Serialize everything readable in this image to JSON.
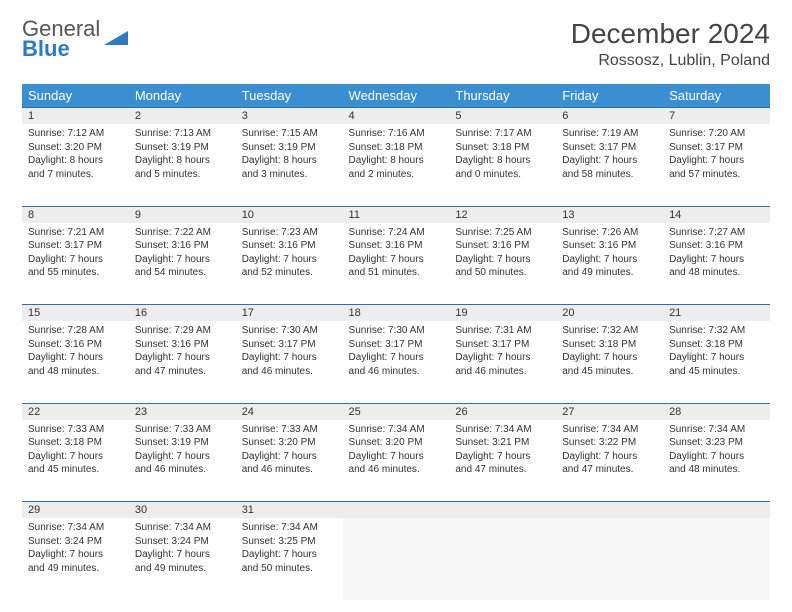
{
  "logo": {
    "text1": "General",
    "text2": "Blue",
    "tri_color": "#2f7bbf"
  },
  "title": "December 2024",
  "location": "Rossosz, Lublin, Poland",
  "colors": {
    "header_bg": "#3a8fd0",
    "daynum_bg": "#ededed",
    "row_border": "#2f6fa5"
  },
  "day_headers": [
    "Sunday",
    "Monday",
    "Tuesday",
    "Wednesday",
    "Thursday",
    "Friday",
    "Saturday"
  ],
  "weeks": [
    [
      {
        "n": "1",
        "sr": "7:12 AM",
        "ss": "3:20 PM",
        "dl": "8 hours and 7 minutes."
      },
      {
        "n": "2",
        "sr": "7:13 AM",
        "ss": "3:19 PM",
        "dl": "8 hours and 5 minutes."
      },
      {
        "n": "3",
        "sr": "7:15 AM",
        "ss": "3:19 PM",
        "dl": "8 hours and 3 minutes."
      },
      {
        "n": "4",
        "sr": "7:16 AM",
        "ss": "3:18 PM",
        "dl": "8 hours and 2 minutes."
      },
      {
        "n": "5",
        "sr": "7:17 AM",
        "ss": "3:18 PM",
        "dl": "8 hours and 0 minutes."
      },
      {
        "n": "6",
        "sr": "7:19 AM",
        "ss": "3:17 PM",
        "dl": "7 hours and 58 minutes."
      },
      {
        "n": "7",
        "sr": "7:20 AM",
        "ss": "3:17 PM",
        "dl": "7 hours and 57 minutes."
      }
    ],
    [
      {
        "n": "8",
        "sr": "7:21 AM",
        "ss": "3:17 PM",
        "dl": "7 hours and 55 minutes."
      },
      {
        "n": "9",
        "sr": "7:22 AM",
        "ss": "3:16 PM",
        "dl": "7 hours and 54 minutes."
      },
      {
        "n": "10",
        "sr": "7:23 AM",
        "ss": "3:16 PM",
        "dl": "7 hours and 52 minutes."
      },
      {
        "n": "11",
        "sr": "7:24 AM",
        "ss": "3:16 PM",
        "dl": "7 hours and 51 minutes."
      },
      {
        "n": "12",
        "sr": "7:25 AM",
        "ss": "3:16 PM",
        "dl": "7 hours and 50 minutes."
      },
      {
        "n": "13",
        "sr": "7:26 AM",
        "ss": "3:16 PM",
        "dl": "7 hours and 49 minutes."
      },
      {
        "n": "14",
        "sr": "7:27 AM",
        "ss": "3:16 PM",
        "dl": "7 hours and 48 minutes."
      }
    ],
    [
      {
        "n": "15",
        "sr": "7:28 AM",
        "ss": "3:16 PM",
        "dl": "7 hours and 48 minutes."
      },
      {
        "n": "16",
        "sr": "7:29 AM",
        "ss": "3:16 PM",
        "dl": "7 hours and 47 minutes."
      },
      {
        "n": "17",
        "sr": "7:30 AM",
        "ss": "3:17 PM",
        "dl": "7 hours and 46 minutes."
      },
      {
        "n": "18",
        "sr": "7:30 AM",
        "ss": "3:17 PM",
        "dl": "7 hours and 46 minutes."
      },
      {
        "n": "19",
        "sr": "7:31 AM",
        "ss": "3:17 PM",
        "dl": "7 hours and 46 minutes."
      },
      {
        "n": "20",
        "sr": "7:32 AM",
        "ss": "3:18 PM",
        "dl": "7 hours and 45 minutes."
      },
      {
        "n": "21",
        "sr": "7:32 AM",
        "ss": "3:18 PM",
        "dl": "7 hours and 45 minutes."
      }
    ],
    [
      {
        "n": "22",
        "sr": "7:33 AM",
        "ss": "3:18 PM",
        "dl": "7 hours and 45 minutes."
      },
      {
        "n": "23",
        "sr": "7:33 AM",
        "ss": "3:19 PM",
        "dl": "7 hours and 46 minutes."
      },
      {
        "n": "24",
        "sr": "7:33 AM",
        "ss": "3:20 PM",
        "dl": "7 hours and 46 minutes."
      },
      {
        "n": "25",
        "sr": "7:34 AM",
        "ss": "3:20 PM",
        "dl": "7 hours and 46 minutes."
      },
      {
        "n": "26",
        "sr": "7:34 AM",
        "ss": "3:21 PM",
        "dl": "7 hours and 47 minutes."
      },
      {
        "n": "27",
        "sr": "7:34 AM",
        "ss": "3:22 PM",
        "dl": "7 hours and 47 minutes."
      },
      {
        "n": "28",
        "sr": "7:34 AM",
        "ss": "3:23 PM",
        "dl": "7 hours and 48 minutes."
      }
    ],
    [
      {
        "n": "29",
        "sr": "7:34 AM",
        "ss": "3:24 PM",
        "dl": "7 hours and 49 minutes."
      },
      {
        "n": "30",
        "sr": "7:34 AM",
        "ss": "3:24 PM",
        "dl": "7 hours and 49 minutes."
      },
      {
        "n": "31",
        "sr": "7:34 AM",
        "ss": "3:25 PM",
        "dl": "7 hours and 50 minutes."
      },
      null,
      null,
      null,
      null
    ]
  ],
  "labels": {
    "sunrise": "Sunrise:",
    "sunset": "Sunset:",
    "daylight": "Daylight:"
  }
}
